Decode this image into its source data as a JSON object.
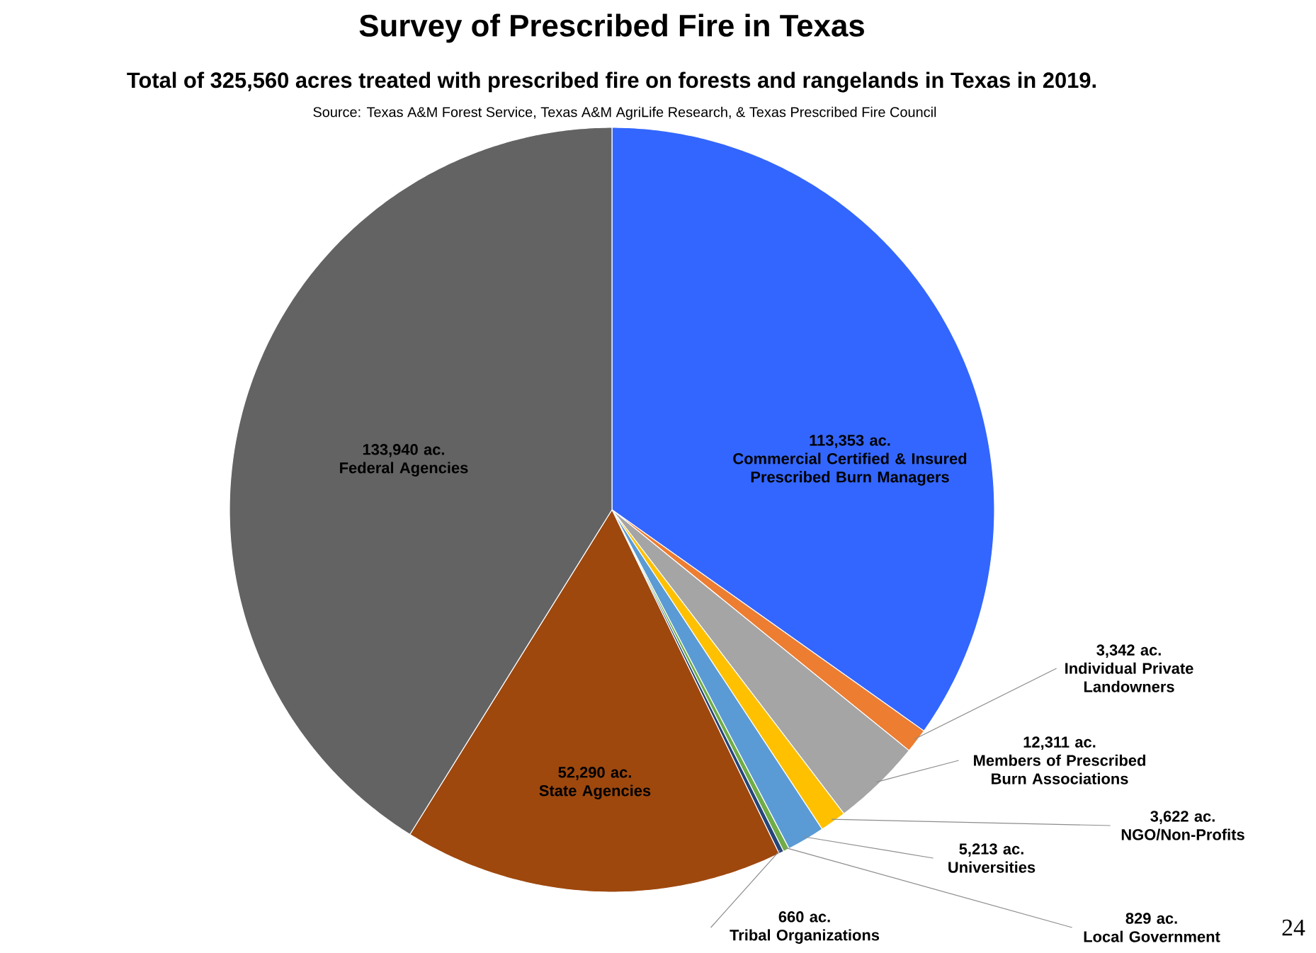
{
  "chart_data": {
    "type": "pie",
    "title": "Survey of Prescribed Fire in Texas",
    "subtitle": "Total of 325,560 acres treated with prescribed fire on forests and rangelands in Texas in 2019.",
    "annotations": [
      "Source: Texas A&M Forest Service, Texas A&M AgriLife Research, & Texas Prescribed Fire Council",
      "24"
    ],
    "categories": [
      "Commercial Certified & Insured Prescribed Burn Managers",
      "Individual Private Landowners",
      "Members of Prescribed Burn Associations",
      "NGO/Non-Profits",
      "Universities",
      "Local Government",
      "Tribal Organizations",
      "State Agencies",
      "Federal Agencies"
    ],
    "values": [
      113353,
      3342,
      12311,
      3622,
      5213,
      829,
      660,
      52290,
      133940
    ],
    "value_labels": [
      "113,353 ac.",
      "3,342 ac.",
      "12,311 ac.",
      "3,622 ac.",
      "5,213 ac.",
      "829 ac.",
      "660 ac.",
      "52,290 ac.",
      "133,940 ac."
    ],
    "colors": [
      "#3366ff",
      "#ed7d31",
      "#a5a5a5",
      "#ffc000",
      "#5b9bd5",
      "#70ad47",
      "#264478",
      "#9e480e",
      "#636363"
    ]
  }
}
